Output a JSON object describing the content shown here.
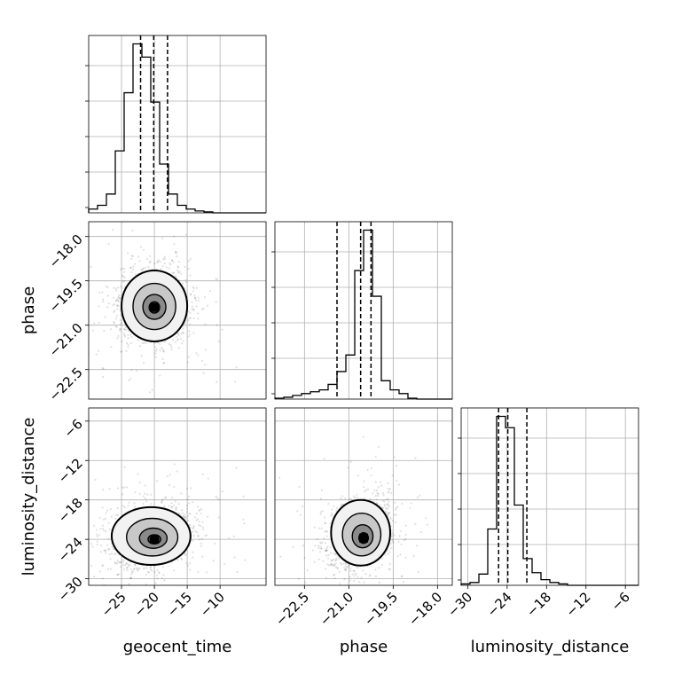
{
  "chart_data": {
    "type": "corner",
    "parameters": [
      "geocent_time",
      "phase",
      "luminosity_distance"
    ],
    "axis_labels": {
      "x": [
        "geocent_time",
        "phase",
        "luminosity_distance"
      ],
      "y": [
        "phase",
        "luminosity_distance"
      ]
    },
    "ranges": {
      "geocent_time": [
        -30,
        -3
      ],
      "phase": [
        -23.5,
        -17.5
      ],
      "luminosity_distance": [
        -31,
        -4
      ]
    },
    "ticks": {
      "geocent_time": {
        "values": [
          -25,
          -20,
          -15,
          -10
        ],
        "labels": [
          "−25",
          "−20",
          "−15",
          "−10"
        ]
      },
      "phase": {
        "values": [
          -22.5,
          -21.0,
          -19.5,
          -18.0
        ],
        "labels": [
          "−22.5",
          "−21.0",
          "−19.5",
          "−18.0"
        ]
      },
      "luminosity_distance": {
        "values": [
          -30,
          -24,
          -18,
          -12,
          -6
        ],
        "labels": [
          "−30",
          "−24",
          "−18",
          "−12",
          "−6"
        ]
      }
    },
    "histograms": {
      "geocent_time": {
        "bin_edges": [
          -30,
          -28.65,
          -27.3,
          -25.95,
          -24.6,
          -23.25,
          -21.9,
          -20.55,
          -19.2,
          -17.85,
          -16.5,
          -15.15,
          -13.8,
          -12.45,
          -11.1,
          -9.75,
          -8.4,
          -7.05,
          -5.7,
          -4.35,
          -3.0
        ],
        "counts": [
          2,
          4,
          10,
          33,
          64,
          90,
          83,
          59,
          26,
          10,
          4,
          2,
          1,
          0.5,
          0,
          0,
          0,
          0,
          0,
          0
        ],
        "quantile_lines": [
          -22.1,
          -20.1,
          -18.0
        ]
      },
      "phase": {
        "bin_edges": [
          -23.5,
          -23.2,
          -22.9,
          -22.6,
          -22.3,
          -22.0,
          -21.7,
          -21.4,
          -21.1,
          -20.8,
          -20.5,
          -20.2,
          -19.9,
          -19.6,
          -19.3,
          -19.0,
          -18.7,
          -18.4,
          -18.1,
          -17.8,
          -17.5
        ],
        "counts": [
          0.5,
          1,
          2,
          3,
          4,
          5,
          8,
          15,
          24,
          70,
          92,
          56,
          10,
          5,
          3,
          0.5,
          0,
          0,
          0,
          0
        ],
        "quantile_lines": [
          -21.4,
          -20.6,
          -20.25
        ]
      },
      "luminosity_distance": {
        "bin_edges": [
          -31,
          -29.65,
          -28.3,
          -26.95,
          -25.6,
          -24.25,
          -22.9,
          -21.55,
          -20.2,
          -18.85,
          -17.5,
          -16.15,
          -14.8,
          -13.45,
          -12.1,
          -10.75,
          -9.4,
          -8.05,
          -6.7,
          -5.35,
          -4.0
        ],
        "counts": [
          1,
          2,
          8,
          40,
          120,
          112,
          57,
          19,
          9,
          4,
          2,
          1,
          0,
          0,
          0,
          0,
          0,
          0,
          0,
          0
        ],
        "quantile_lines": [
          -25.3,
          -23.9,
          -21.0
        ]
      }
    },
    "panels_2d": [
      {
        "x": "geocent_time",
        "y": "phase",
        "center": [
          -20.0,
          -20.35
        ],
        "spread": [
          2.5,
          0.6
        ],
        "mode": [
          -20.0,
          -20.4
        ],
        "contour_levels": 4
      },
      {
        "x": "geocent_time",
        "y": "luminosity_distance",
        "center": [
          -20.5,
          -23.5
        ],
        "spread": [
          3.0,
          2.2
        ],
        "mode": [
          -20.0,
          -24.0
        ],
        "contour_levels": 4
      },
      {
        "x": "phase",
        "y": "luminosity_distance",
        "center": [
          -20.6,
          -23.0
        ],
        "spread": [
          0.5,
          2.5
        ],
        "mode": [
          -20.5,
          -23.8
        ],
        "contour_levels": 4
      }
    ]
  }
}
